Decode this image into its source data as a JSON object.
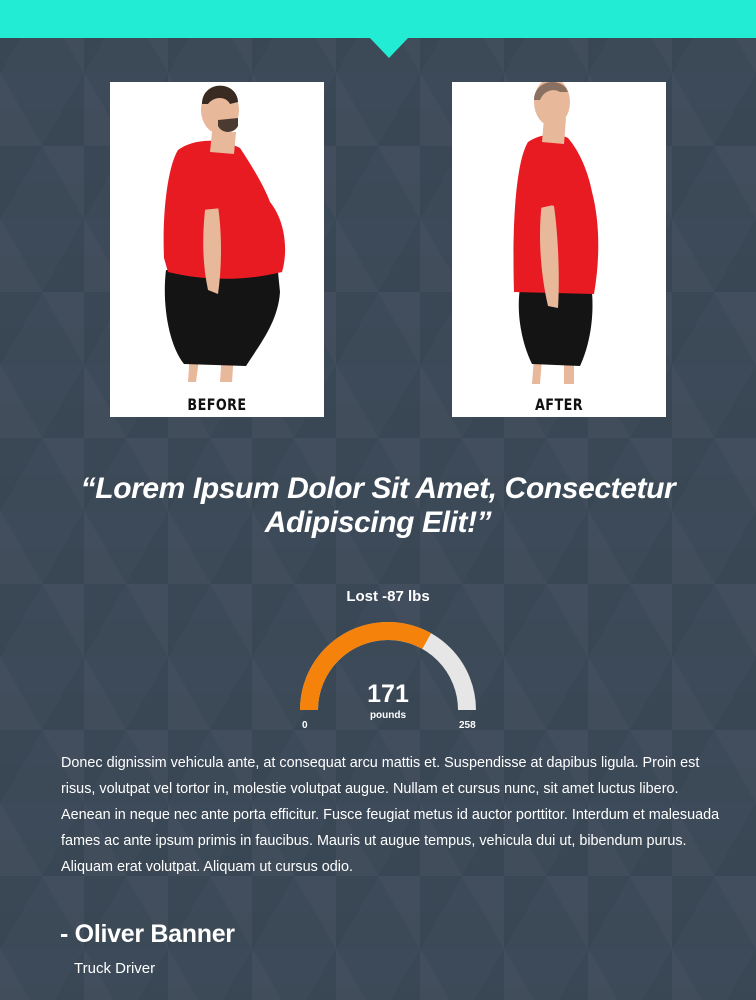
{
  "colors": {
    "accent": "#22ecd4",
    "background": "#3d4a59",
    "gauge_fill": "#f5820a",
    "gauge_track": "#e6e6e6",
    "shirt": "#e81b23",
    "shorts": "#141414",
    "skin": "#e8b89a"
  },
  "photos": [
    {
      "caption": "BEFORE"
    },
    {
      "caption": "AFTER"
    }
  ],
  "testimonial": {
    "quote": "“Lorem Ipsum Dolor Sit Amet, Consectetur Adipiscing Elit!”"
  },
  "gauge": {
    "title": "Lost -87 lbs",
    "value": 171,
    "unit": "pounds",
    "min": 0,
    "max": 258
  },
  "body_text": "Donec dignissim vehicula ante, at consequat arcu mattis et. Suspendisse at dapibus ligula. Proin est risus, volutpat vel tortor in, molestie volutpat augue. Nullam et cursus nunc, sit amet luctus libero. Aenean in neque nec ante porta efficitur. Fusce feugiat metus id auctor porttitor. Interdum et malesuada fames ac ante ipsum primis in faucibus. Mauris ut augue tempus, vehicula dui ut, bibendum purus. Aliquam erat volutpat. Aliquam ut cursus odio.",
  "author": {
    "name": "- Oliver Banner",
    "role": "Truck Driver"
  }
}
